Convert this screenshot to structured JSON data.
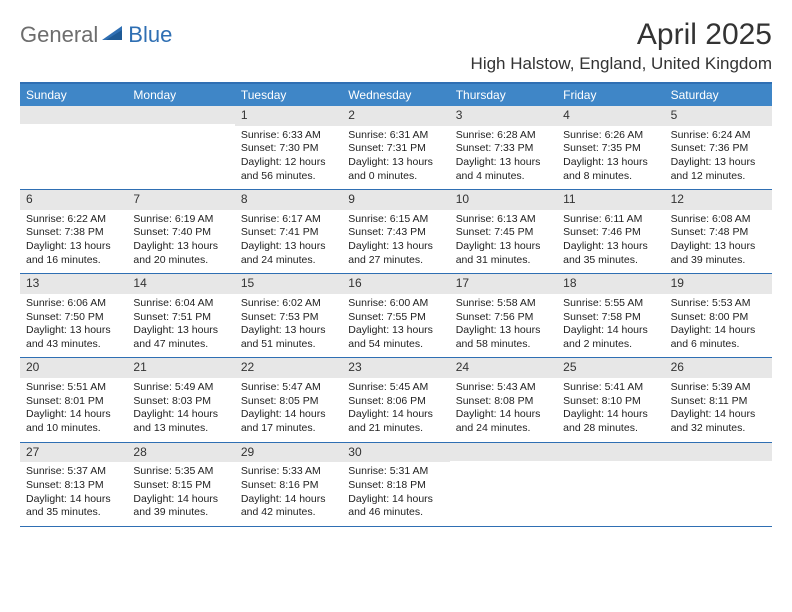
{
  "logo": {
    "general": "General",
    "blue": "Blue"
  },
  "title": "April 2025",
  "location": "High Halstow, England, United Kingdom",
  "colors": {
    "header_bg": "#3f86c7",
    "border": "#2f6fb3",
    "daynum_bg": "#e7e7e7",
    "logo_gray": "#6d6d6d",
    "logo_blue": "#2f6fb3"
  },
  "day_headers": [
    "Sunday",
    "Monday",
    "Tuesday",
    "Wednesday",
    "Thursday",
    "Friday",
    "Saturday"
  ],
  "leading_blanks": 2,
  "days": [
    {
      "n": 1,
      "sr": "6:33 AM",
      "ss": "7:30 PM",
      "dl": "12 hours and 56 minutes."
    },
    {
      "n": 2,
      "sr": "6:31 AM",
      "ss": "7:31 PM",
      "dl": "13 hours and 0 minutes."
    },
    {
      "n": 3,
      "sr": "6:28 AM",
      "ss": "7:33 PM",
      "dl": "13 hours and 4 minutes."
    },
    {
      "n": 4,
      "sr": "6:26 AM",
      "ss": "7:35 PM",
      "dl": "13 hours and 8 minutes."
    },
    {
      "n": 5,
      "sr": "6:24 AM",
      "ss": "7:36 PM",
      "dl": "13 hours and 12 minutes."
    },
    {
      "n": 6,
      "sr": "6:22 AM",
      "ss": "7:38 PM",
      "dl": "13 hours and 16 minutes."
    },
    {
      "n": 7,
      "sr": "6:19 AM",
      "ss": "7:40 PM",
      "dl": "13 hours and 20 minutes."
    },
    {
      "n": 8,
      "sr": "6:17 AM",
      "ss": "7:41 PM",
      "dl": "13 hours and 24 minutes."
    },
    {
      "n": 9,
      "sr": "6:15 AM",
      "ss": "7:43 PM",
      "dl": "13 hours and 27 minutes."
    },
    {
      "n": 10,
      "sr": "6:13 AM",
      "ss": "7:45 PM",
      "dl": "13 hours and 31 minutes."
    },
    {
      "n": 11,
      "sr": "6:11 AM",
      "ss": "7:46 PM",
      "dl": "13 hours and 35 minutes."
    },
    {
      "n": 12,
      "sr": "6:08 AM",
      "ss": "7:48 PM",
      "dl": "13 hours and 39 minutes."
    },
    {
      "n": 13,
      "sr": "6:06 AM",
      "ss": "7:50 PM",
      "dl": "13 hours and 43 minutes."
    },
    {
      "n": 14,
      "sr": "6:04 AM",
      "ss": "7:51 PM",
      "dl": "13 hours and 47 minutes."
    },
    {
      "n": 15,
      "sr": "6:02 AM",
      "ss": "7:53 PM",
      "dl": "13 hours and 51 minutes."
    },
    {
      "n": 16,
      "sr": "6:00 AM",
      "ss": "7:55 PM",
      "dl": "13 hours and 54 minutes."
    },
    {
      "n": 17,
      "sr": "5:58 AM",
      "ss": "7:56 PM",
      "dl": "13 hours and 58 minutes."
    },
    {
      "n": 18,
      "sr": "5:55 AM",
      "ss": "7:58 PM",
      "dl": "14 hours and 2 minutes."
    },
    {
      "n": 19,
      "sr": "5:53 AM",
      "ss": "8:00 PM",
      "dl": "14 hours and 6 minutes."
    },
    {
      "n": 20,
      "sr": "5:51 AM",
      "ss": "8:01 PM",
      "dl": "14 hours and 10 minutes."
    },
    {
      "n": 21,
      "sr": "5:49 AM",
      "ss": "8:03 PM",
      "dl": "14 hours and 13 minutes."
    },
    {
      "n": 22,
      "sr": "5:47 AM",
      "ss": "8:05 PM",
      "dl": "14 hours and 17 minutes."
    },
    {
      "n": 23,
      "sr": "5:45 AM",
      "ss": "8:06 PM",
      "dl": "14 hours and 21 minutes."
    },
    {
      "n": 24,
      "sr": "5:43 AM",
      "ss": "8:08 PM",
      "dl": "14 hours and 24 minutes."
    },
    {
      "n": 25,
      "sr": "5:41 AM",
      "ss": "8:10 PM",
      "dl": "14 hours and 28 minutes."
    },
    {
      "n": 26,
      "sr": "5:39 AM",
      "ss": "8:11 PM",
      "dl": "14 hours and 32 minutes."
    },
    {
      "n": 27,
      "sr": "5:37 AM",
      "ss": "8:13 PM",
      "dl": "14 hours and 35 minutes."
    },
    {
      "n": 28,
      "sr": "5:35 AM",
      "ss": "8:15 PM",
      "dl": "14 hours and 39 minutes."
    },
    {
      "n": 29,
      "sr": "5:33 AM",
      "ss": "8:16 PM",
      "dl": "14 hours and 42 minutes."
    },
    {
      "n": 30,
      "sr": "5:31 AM",
      "ss": "8:18 PM",
      "dl": "14 hours and 46 minutes."
    }
  ],
  "labels": {
    "sunrise": "Sunrise: ",
    "sunset": "Sunset: ",
    "daylight": "Daylight: "
  }
}
